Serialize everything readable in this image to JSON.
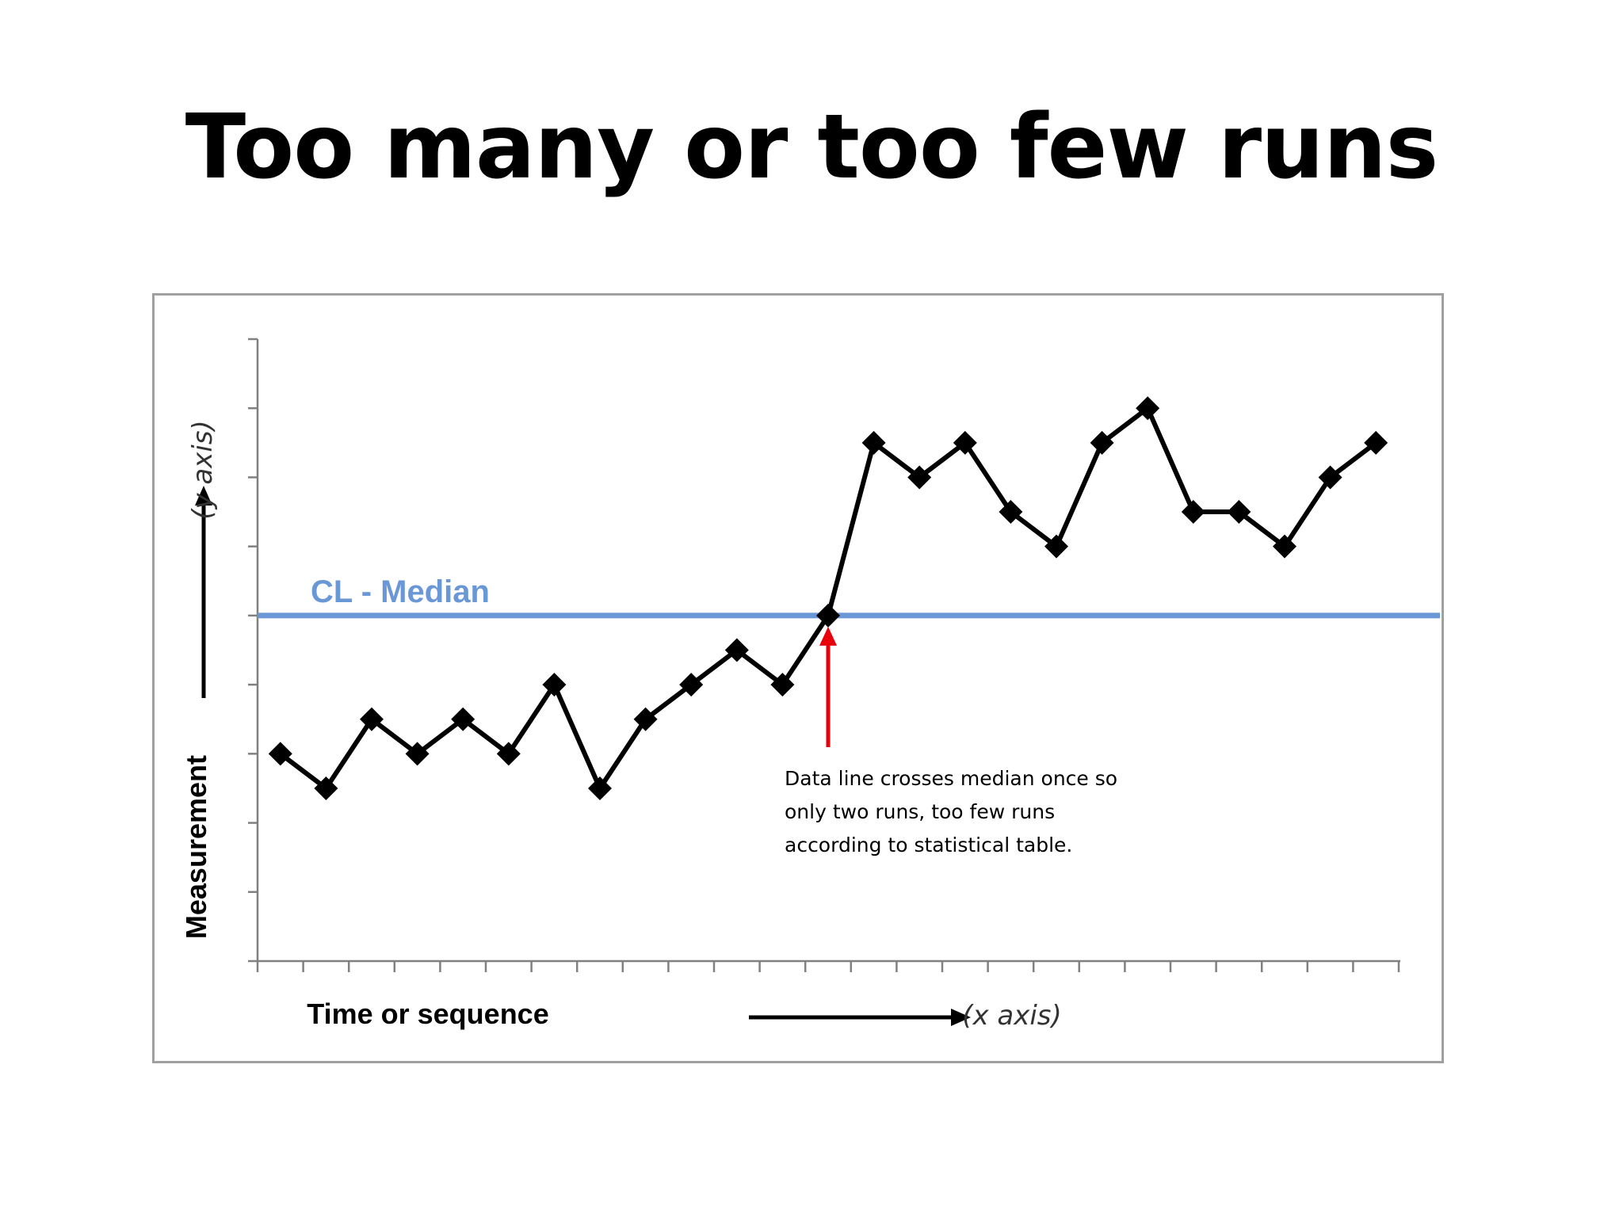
{
  "title": "Too many or too few runs",
  "chart_data": {
    "type": "line",
    "title": "Too many or too few runs",
    "xlabel": "Time or sequence",
    "xlabel_suffix": "(x axis)",
    "ylabel": "Measurement",
    "ylabel_suffix": "(y axis)",
    "x": [
      1,
      2,
      3,
      4,
      5,
      6,
      7,
      8,
      9,
      10,
      11,
      12,
      13,
      14,
      15,
      16,
      17,
      18,
      19,
      20,
      21,
      22,
      23,
      24,
      25
    ],
    "xlim": [
      0.5,
      25.5
    ],
    "ylim": [
      0,
      9
    ],
    "grid": false,
    "legend": "none",
    "series": [
      {
        "values": [
          3,
          2.5,
          3.5,
          3,
          3.5,
          3,
          4,
          2.5,
          3.5,
          4,
          4.5,
          4,
          5,
          7.5,
          7,
          7.5,
          6.5,
          6,
          7.5,
          8,
          6.5,
          6.5,
          6,
          7,
          7.5
        ],
        "color": "#000000",
        "marker": "diamond"
      }
    ],
    "median": {
      "label": "CL - Median",
      "value": 5,
      "color": "#6a97d6"
    },
    "annotations": [
      {
        "lines": [
          "Data line crosses median once so",
          "only two runs, too few runs",
          "according  to statistical table."
        ],
        "arrow_color": "#e8000b",
        "points_to_x": 13
      }
    ]
  }
}
